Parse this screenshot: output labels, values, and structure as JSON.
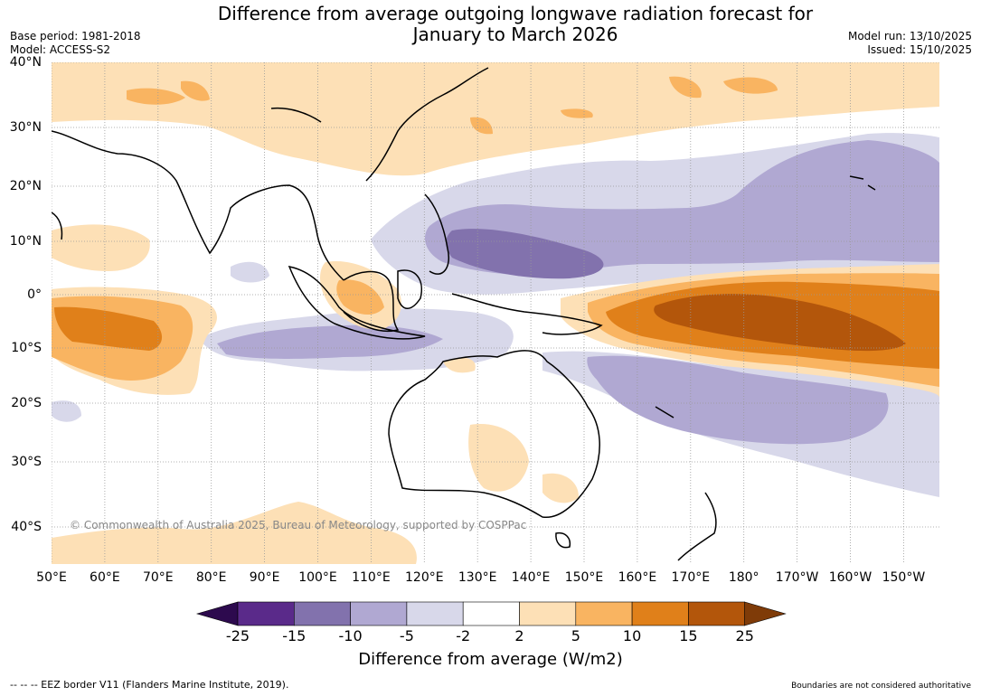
{
  "title": {
    "line1": "Difference from average outgoing longwave radiation forecast for",
    "line2": "January to March 2026"
  },
  "meta": {
    "base_period": "Base period: 1981-2018",
    "model": "Model: ACCESS-S2",
    "model_run": "Model run: 13/10/2025",
    "issued": "Issued: 15/10/2025"
  },
  "axes": {
    "lat_labels": [
      "40°N",
      "30°N",
      "20°N",
      "10°N",
      "0°",
      "10°S",
      "20°S",
      "30°S",
      "40°S"
    ],
    "lon_labels": [
      "50°E",
      "60°E",
      "70°E",
      "80°E",
      "90°E",
      "100°E",
      "110°E",
      "120°E",
      "130°E",
      "140°E",
      "150°E",
      "160°E",
      "170°E",
      "180°",
      "170°W",
      "160°W",
      "150°W"
    ]
  },
  "copyright": "© Commonwealth of Australia 2025, Bureau of Meteorology, supported by COSPPac",
  "colorbar": {
    "label": "Difference from average (W/m2)",
    "ticks": [
      "-25",
      "-15",
      "-10",
      "-5",
      "-2",
      "2",
      "5",
      "10",
      "15",
      "25"
    ],
    "colors": [
      "#2d0a4e",
      "#5a2a8a",
      "#8272ad",
      "#b0a8d2",
      "#d8d8ea",
      "#ffffff",
      "#fde0b6",
      "#f9b461",
      "#e0801a",
      "#b3560b",
      "#7f3b08"
    ]
  },
  "footer": {
    "left": "--  --  -- EEZ border V11 (Flanders Marine Institute, 2019).",
    "right": "Boundaries are not considered authoritative"
  }
}
